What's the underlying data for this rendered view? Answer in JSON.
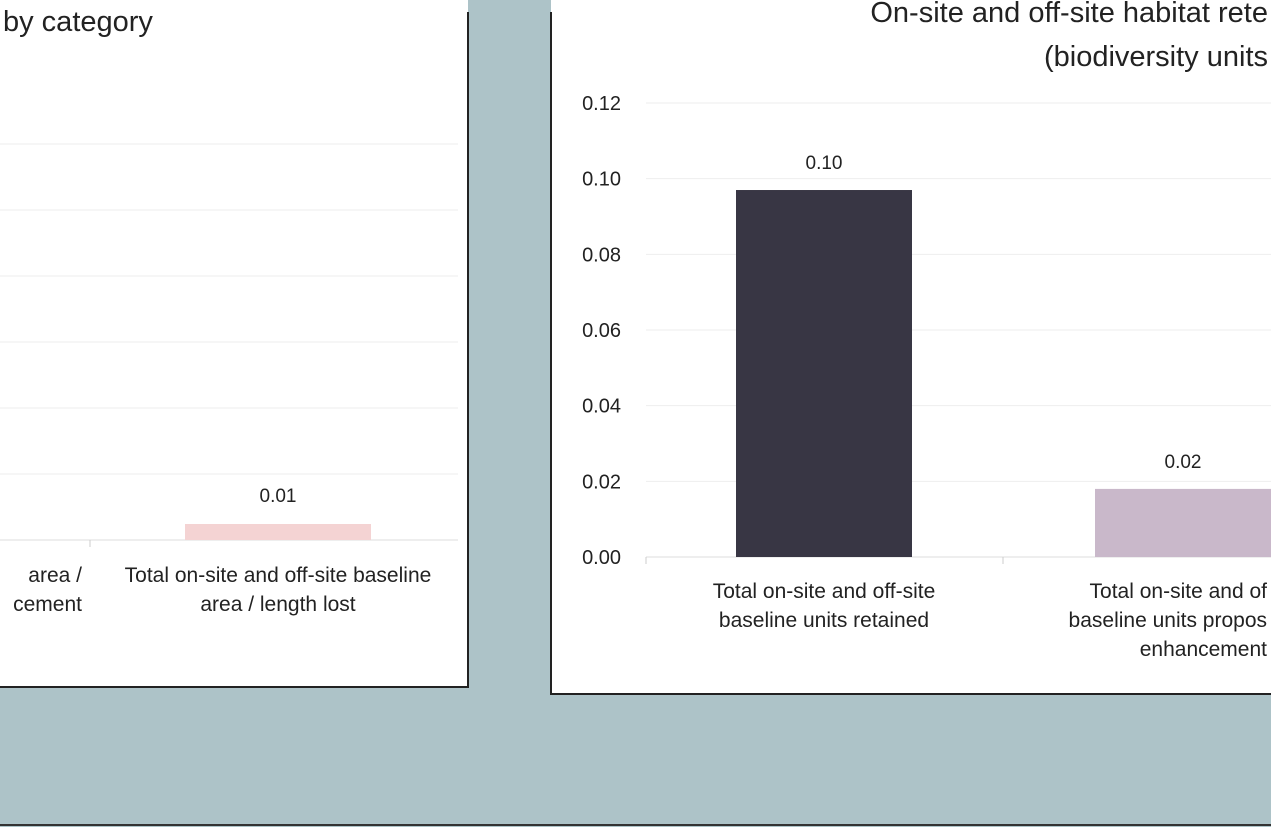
{
  "colors": {
    "workspace_background": "#adc3c8",
    "panel_background": "#ffffff",
    "panel_border": "#222222",
    "gridline": "#eeeeee",
    "axis_text": "#222222",
    "bar_dark": "#383644",
    "bar_mauve": "#c9b8ca",
    "bar_pink": "#f4d3d3"
  },
  "chart_data": [
    {
      "type": "bar",
      "title": "by category",
      "categories": [
        [
          "area /",
          "cement"
        ],
        [
          "Total on-site and off-site baseline",
          "area / length lost"
        ]
      ],
      "values": [
        null,
        0.01
      ],
      "value_labels": [
        "",
        "0.01"
      ],
      "bar_colors": [
        "",
        "#f4d3d3"
      ],
      "ylim": [
        0,
        0.08
      ],
      "grid": true
    },
    {
      "type": "bar",
      "title": [
        "On-site and off-site habitat rete",
        "(biodiversity units"
      ],
      "categories": [
        [
          "Total on-site and off-site",
          "baseline units retained"
        ],
        [
          "Total on-site and of",
          "baseline units propos",
          "enhancement"
        ]
      ],
      "values": [
        0.097,
        0.018
      ],
      "value_labels": [
        "0.10",
        "0.02"
      ],
      "bar_colors": [
        "#383644",
        "#c9b8ca"
      ],
      "ylim": [
        0,
        0.12
      ],
      "yticks": [
        "0.00",
        "0.02",
        "0.04",
        "0.06",
        "0.08",
        "0.10",
        "0.12"
      ],
      "grid": true
    }
  ]
}
